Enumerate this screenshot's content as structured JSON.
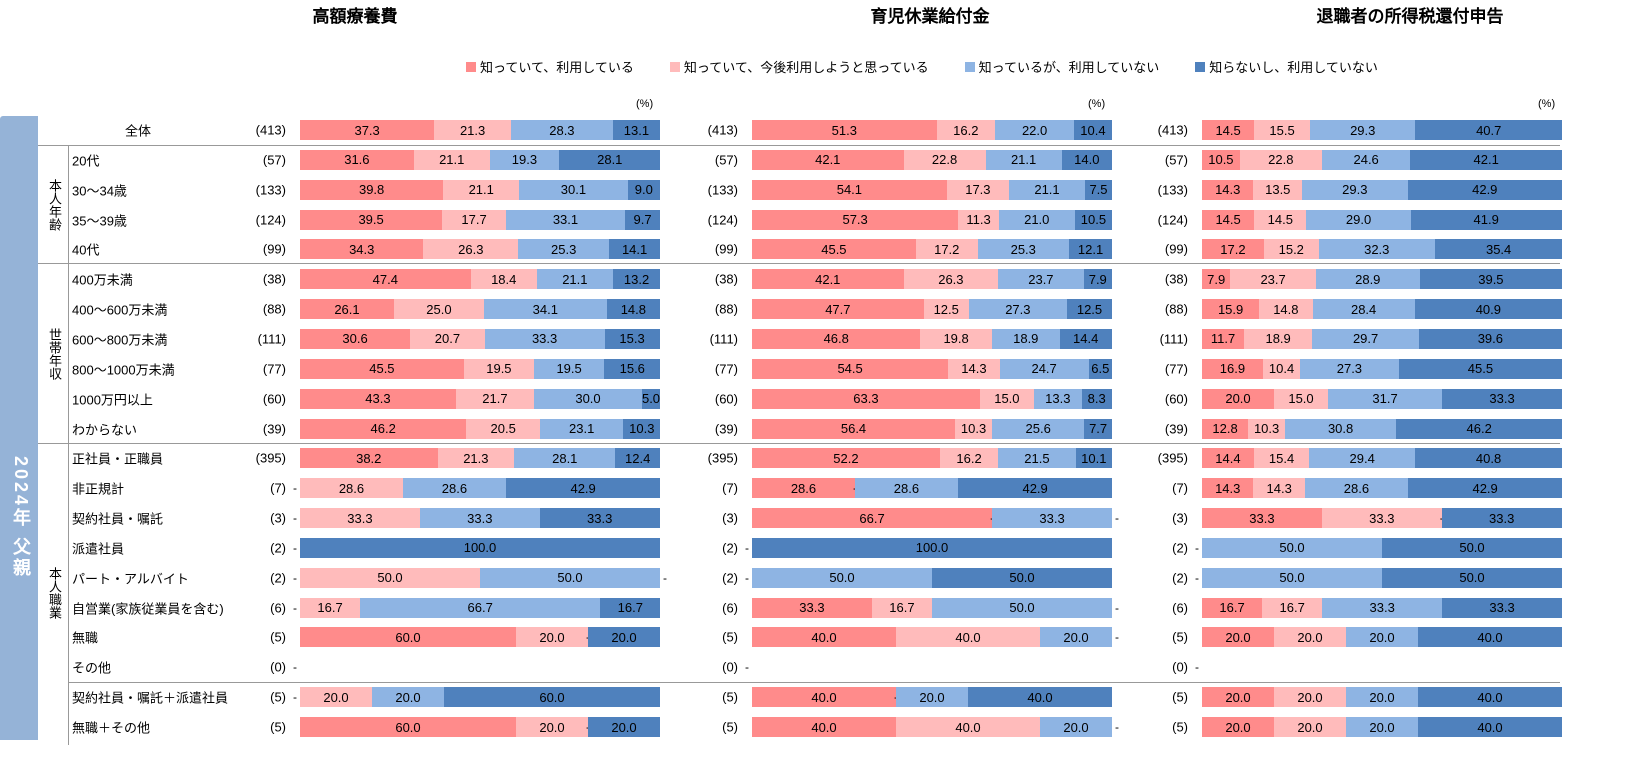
{
  "chart_data": {
    "type": "bar",
    "orientation": "horizontal",
    "stacked": true,
    "unit": "(%)",
    "side_label": "2024年 父親",
    "legend": [
      {
        "name": "知っていて、利用している",
        "color": "#FF8B8B"
      },
      {
        "name": "知っていて、今後利用しようと思っている",
        "color": "#FFBBBB"
      },
      {
        "name": "知っているが、利用していない",
        "color": "#8EB4E3"
      },
      {
        "name": "知らないし、利用していない",
        "color": "#4F81BD"
      }
    ],
    "groups": [
      {
        "label": "本人年齢",
        "rows": [
          1,
          4
        ]
      },
      {
        "label": "世帯年収",
        "rows": [
          5,
          10
        ]
      },
      {
        "label": "本人職業",
        "rows": [
          11,
          20
        ]
      }
    ],
    "rows": [
      "全体",
      "20代",
      "30～34歳",
      "35～39歳",
      "40代",
      "400万未満",
      "400～600万未満",
      "600～800万未満",
      "800～1000万未満",
      "1000万円以上",
      "わからない",
      "正社員・正職員",
      "非正規計",
      "契約社員・嘱託",
      "派遣社員",
      "パート・アルバイト",
      "自営業(家族従業員を含む)",
      "無職",
      "その他",
      "契約社員・嘱託＋派遣社員",
      "無職＋その他"
    ],
    "n": [
      "(413)",
      "(57)",
      "(133)",
      "(124)",
      "(99)",
      "(38)",
      "(88)",
      "(111)",
      "(77)",
      "(60)",
      "(39)",
      "(395)",
      "(7)",
      "(3)",
      "(2)",
      "(2)",
      "(6)",
      "(5)",
      "(0)",
      "(5)",
      "(5)"
    ],
    "charts": [
      {
        "title": "高額療養費",
        "values": [
          [
            37.3,
            21.3,
            28.3,
            13.1
          ],
          [
            31.6,
            21.1,
            19.3,
            28.1
          ],
          [
            39.8,
            21.1,
            30.1,
            9.0
          ],
          [
            39.5,
            17.7,
            33.1,
            9.7
          ],
          [
            34.3,
            26.3,
            25.3,
            14.1
          ],
          [
            47.4,
            18.4,
            21.1,
            13.2
          ],
          [
            26.1,
            25.0,
            34.1,
            14.8
          ],
          [
            30.6,
            20.7,
            33.3,
            15.3
          ],
          [
            45.5,
            19.5,
            19.5,
            15.6
          ],
          [
            43.3,
            21.7,
            30.0,
            5.0
          ],
          [
            46.2,
            20.5,
            23.1,
            10.3
          ],
          [
            38.2,
            21.3,
            28.1,
            12.4
          ],
          [
            0,
            28.6,
            28.6,
            42.9
          ],
          [
            0,
            33.3,
            33.3,
            33.3
          ],
          [
            0,
            0,
            0,
            100.0
          ],
          [
            0,
            50.0,
            50.0,
            0
          ],
          [
            0,
            16.7,
            66.7,
            16.7
          ],
          [
            60.0,
            20.0,
            0,
            20.0
          ],
          null,
          [
            0,
            20.0,
            20.0,
            60.0
          ],
          [
            60.0,
            20.0,
            0,
            20.0
          ]
        ]
      },
      {
        "title": "育児休業給付金",
        "values": [
          [
            51.3,
            16.2,
            22.0,
            10.4
          ],
          [
            42.1,
            22.8,
            21.1,
            14.0
          ],
          [
            54.1,
            17.3,
            21.1,
            7.5
          ],
          [
            57.3,
            11.3,
            21.0,
            10.5
          ],
          [
            45.5,
            17.2,
            25.3,
            12.1
          ],
          [
            42.1,
            26.3,
            23.7,
            7.9
          ],
          [
            47.7,
            12.5,
            27.3,
            12.5
          ],
          [
            46.8,
            19.8,
            18.9,
            14.4
          ],
          [
            54.5,
            14.3,
            24.7,
            6.5
          ],
          [
            63.3,
            15.0,
            13.3,
            8.3
          ],
          [
            56.4,
            10.3,
            25.6,
            7.7
          ],
          [
            52.2,
            16.2,
            21.5,
            10.1
          ],
          [
            28.6,
            0,
            28.6,
            42.9
          ],
          [
            66.7,
            0,
            33.3,
            0
          ],
          [
            0,
            0,
            0,
            100.0
          ],
          [
            0,
            0,
            50.0,
            50.0
          ],
          [
            33.3,
            16.7,
            50.0,
            0
          ],
          [
            40.0,
            40.0,
            20.0,
            0
          ],
          null,
          [
            40.0,
            0,
            20.0,
            40.0
          ],
          [
            40.0,
            40.0,
            20.0,
            0
          ]
        ]
      },
      {
        "title": "退職者の所得税還付申告",
        "values": [
          [
            14.5,
            15.5,
            29.3,
            40.7
          ],
          [
            10.5,
            22.8,
            24.6,
            42.1
          ],
          [
            14.3,
            13.5,
            29.3,
            42.9
          ],
          [
            14.5,
            14.5,
            29.0,
            41.9
          ],
          [
            17.2,
            15.2,
            32.3,
            35.4
          ],
          [
            7.9,
            23.7,
            28.9,
            39.5
          ],
          [
            15.9,
            14.8,
            28.4,
            40.9
          ],
          [
            11.7,
            18.9,
            29.7,
            39.6
          ],
          [
            16.9,
            10.4,
            27.3,
            45.5
          ],
          [
            20.0,
            15.0,
            31.7,
            33.3
          ],
          [
            12.8,
            10.3,
            30.8,
            46.2
          ],
          [
            14.4,
            15.4,
            29.4,
            40.8
          ],
          [
            14.3,
            14.3,
            28.6,
            42.9
          ],
          [
            33.3,
            33.3,
            0,
            33.3
          ],
          [
            0,
            0,
            50.0,
            50.0
          ],
          [
            0,
            0,
            50.0,
            50.0
          ],
          [
            16.7,
            16.7,
            33.3,
            33.3
          ],
          [
            20.0,
            20.0,
            20.0,
            40.0
          ],
          null,
          [
            20.0,
            20.0,
            20.0,
            40.0
          ],
          [
            20.0,
            20.0,
            20.0,
            40.0
          ]
        ]
      }
    ],
    "xlim": [
      0,
      100
    ]
  }
}
